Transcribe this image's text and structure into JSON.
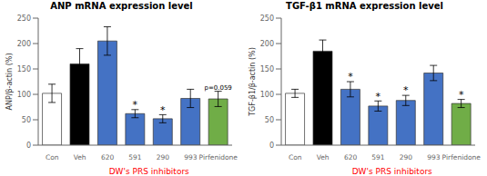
{
  "chart_data": [
    {
      "type": "bar",
      "title": "ANP mRNA expression level",
      "ylabel": "ANP/β-actin (%)",
      "categories": [
        "Con",
        "Veh",
        "620",
        "591",
        "290",
        "993",
        "Pirfenidone"
      ],
      "values": [
        102,
        160,
        205,
        62,
        52,
        92,
        91
      ],
      "errors": [
        18,
        30,
        28,
        8,
        8,
        18,
        15
      ],
      "colors": [
        "white",
        "black",
        "#4472C4",
        "#4472C4",
        "#4472C4",
        "#4472C4",
        "#70AD47"
      ],
      "ylim": [
        0,
        250
      ],
      "yticks": [
        0,
        50,
        100,
        150,
        200,
        250
      ],
      "annotations": [
        {
          "text": "*",
          "category": "591"
        },
        {
          "text": "*",
          "category": "290"
        },
        {
          "text": "p=0.059",
          "category": "Pirfenidone"
        },
        {
          "text": "DW's PRS inhibitors",
          "color": "red",
          "categories": [
            "620",
            "993"
          ]
        }
      ]
    },
    {
      "type": "bar",
      "title": "TGF-β1 mRNA expression level",
      "ylabel": "TGF-β1/β-actin (%)",
      "categories": [
        "Con",
        "Veh",
        "620",
        "591",
        "290",
        "993",
        "Pirfenidone"
      ],
      "values": [
        102,
        185,
        110,
        77,
        88,
        142,
        82
      ],
      "errors": [
        8,
        22,
        15,
        10,
        10,
        15,
        8
      ],
      "colors": [
        "white",
        "black",
        "#4472C4",
        "#4472C4",
        "#4472C4",
        "#4472C4",
        "#70AD47"
      ],
      "ylim": [
        0,
        250
      ],
      "yticks": [
        0,
        50,
        100,
        150,
        200,
        250
      ],
      "annotations": [
        {
          "text": "*",
          "category": "620"
        },
        {
          "text": "*",
          "category": "591"
        },
        {
          "text": "*",
          "category": "290"
        },
        {
          "text": "*",
          "category": "Pirfenidone"
        },
        {
          "text": "DW's PRS inhibitors",
          "color": "red",
          "categories": [
            "620",
            "993"
          ]
        }
      ]
    }
  ]
}
